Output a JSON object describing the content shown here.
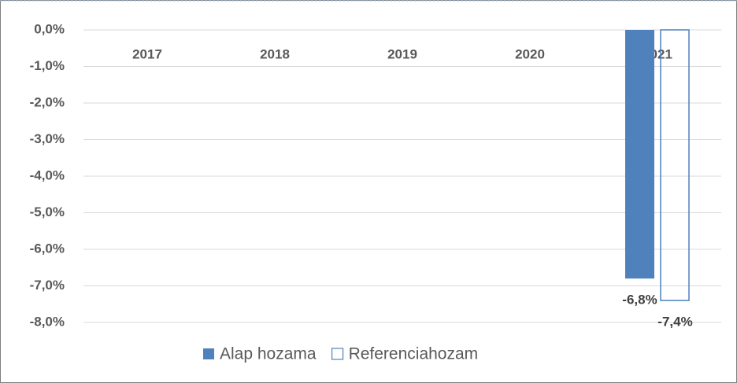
{
  "chart_data": {
    "type": "bar",
    "categories": [
      "2017",
      "2018",
      "2019",
      "2020",
      "2021"
    ],
    "series": [
      {
        "name": "Alap hozama",
        "color": "#4f81bd",
        "fill": true,
        "values": [
          null,
          null,
          null,
          null,
          -6.8
        ],
        "value_labels": [
          null,
          null,
          null,
          null,
          "-6,8%"
        ]
      },
      {
        "name": "Referenciahozam",
        "color": "#4f81bd",
        "fill": false,
        "values": [
          null,
          null,
          null,
          null,
          -7.4
        ],
        "value_labels": [
          null,
          null,
          null,
          null,
          "-7,4%"
        ]
      }
    ],
    "ylim": [
      -8,
      0
    ],
    "yticks": [
      {
        "value": 0,
        "label": "0,0%"
      },
      {
        "value": -1,
        "label": "-1,0%"
      },
      {
        "value": -2,
        "label": "-2,0%"
      },
      {
        "value": -3,
        "label": "-3,0%"
      },
      {
        "value": -4,
        "label": "-4,0%"
      },
      {
        "value": -5,
        "label": "-5,0%"
      },
      {
        "value": -6,
        "label": "-6,0%"
      },
      {
        "value": -7,
        "label": "-7,0%"
      },
      {
        "value": -8,
        "label": "-8,0%"
      }
    ],
    "grid": true,
    "legend": "bottom"
  }
}
